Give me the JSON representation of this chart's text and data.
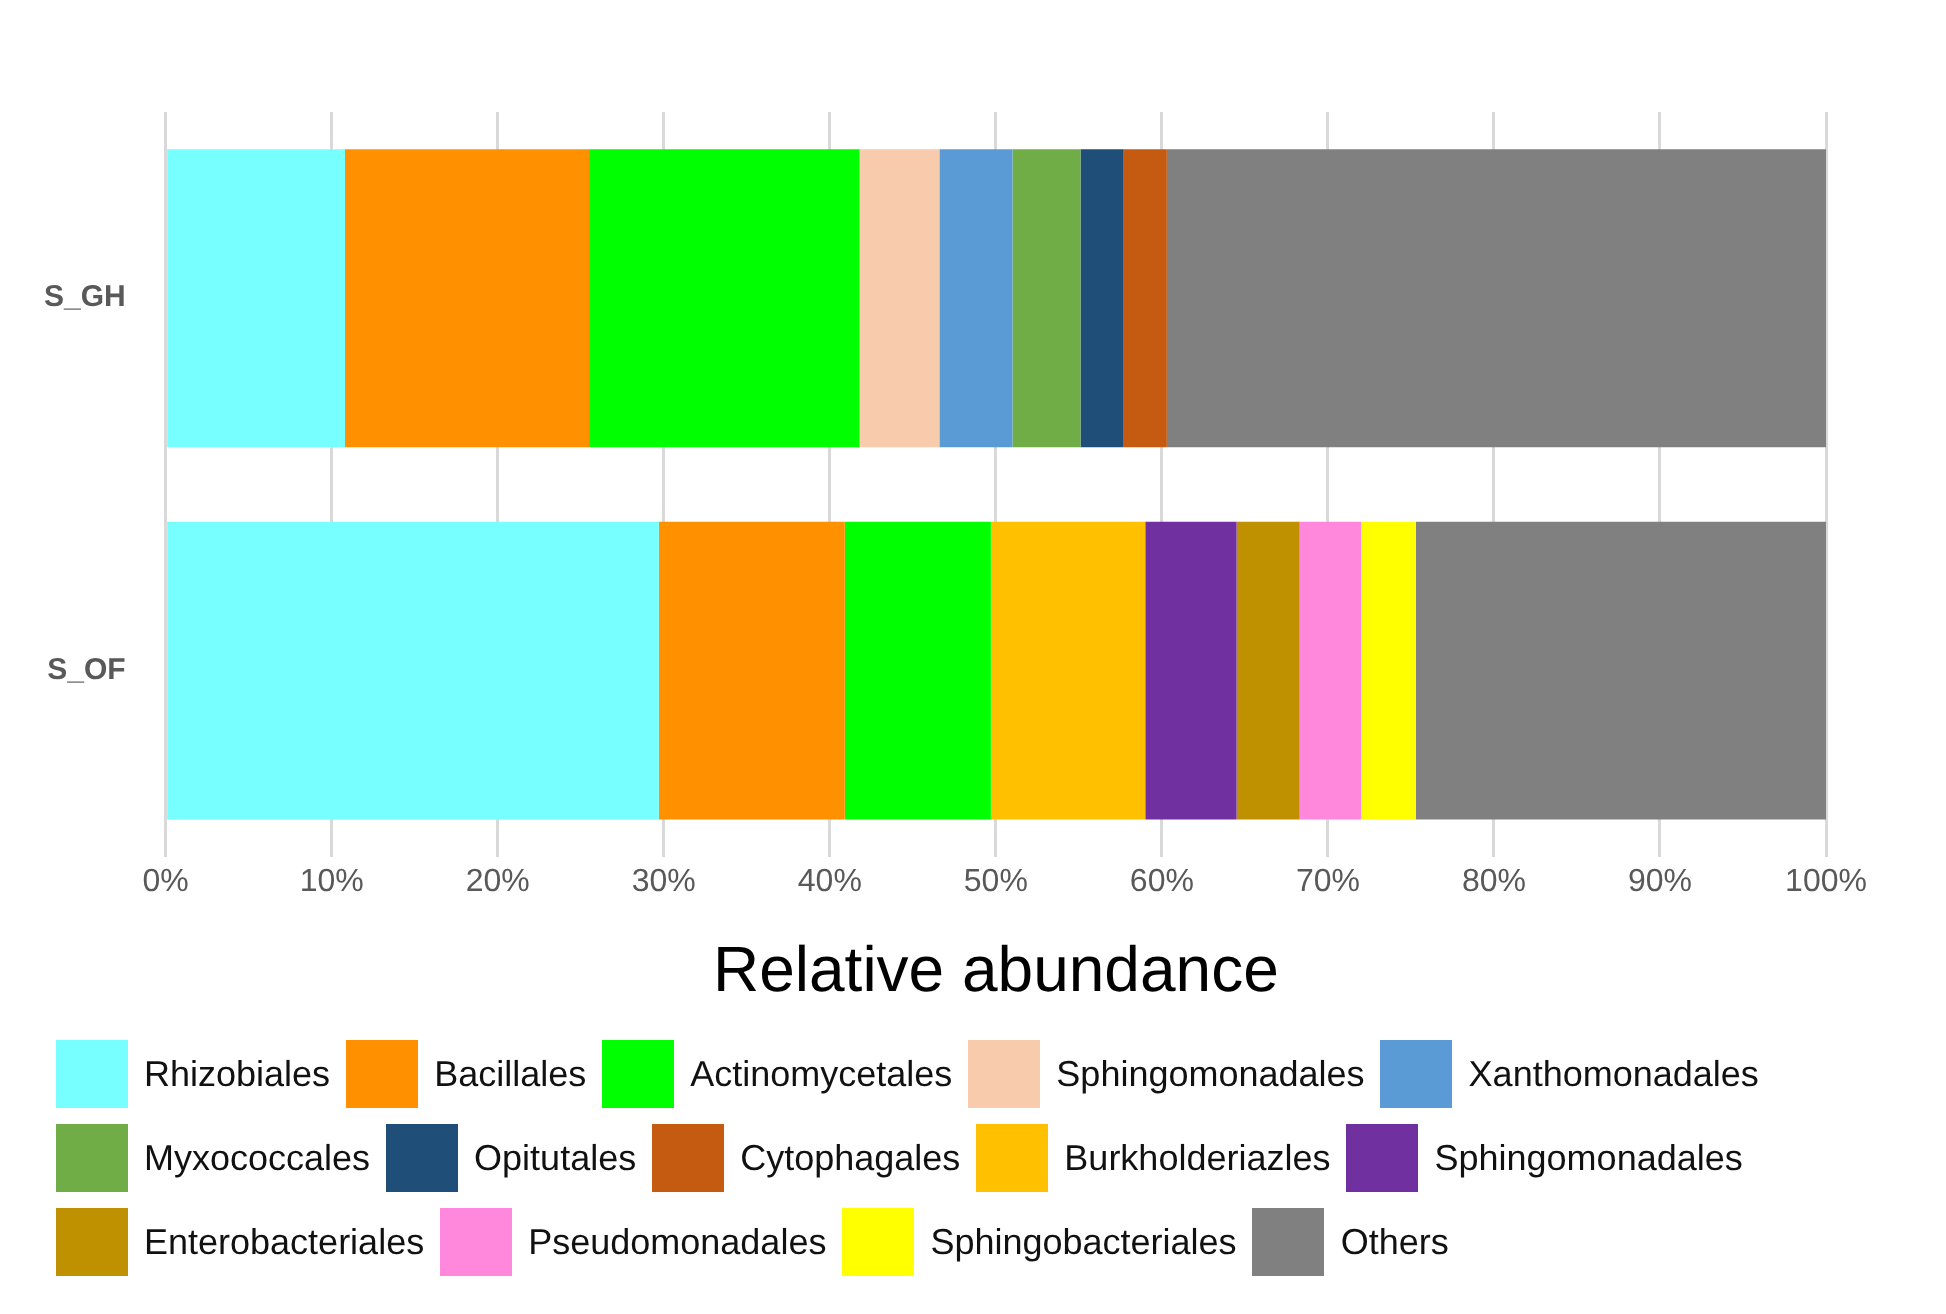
{
  "chart_data": {
    "type": "bar",
    "orientation": "horizontal",
    "stacked": true,
    "xlabel": "Relative abundance",
    "categories": [
      "S_GH",
      "S_OF"
    ],
    "series": [
      {
        "name": "Rhizobiales",
        "color": "#77ffff",
        "values": [
          10.8,
          29.7
        ]
      },
      {
        "name": "Bacillales",
        "color": "#ff9100",
        "values": [
          14.7,
          11.2
        ]
      },
      {
        "name": "Actinomycetales",
        "color": "#00ff00",
        "values": [
          16.3,
          8.8
        ]
      },
      {
        "name": "Sphingomonadales",
        "color": "#f7cbac",
        "values": [
          4.8,
          null
        ]
      },
      {
        "name": "Xanthomonadales",
        "color": "#5b9bd5",
        "values": [
          4.4,
          null
        ]
      },
      {
        "name": "Myxococcales",
        "color": "#70ad47",
        "values": [
          4.1,
          null
        ]
      },
      {
        "name": "Opitutales",
        "color": "#1f4e79",
        "values": [
          2.6,
          null
        ]
      },
      {
        "name": "Cytophagales",
        "color": "#c55a11",
        "values": [
          2.6,
          null
        ]
      },
      {
        "name": "Burkholderiazles",
        "color": "#ffc000",
        "values": [
          null,
          9.3
        ]
      },
      {
        "name": "Sphingomonadales",
        "color": "#7030a0",
        "values": [
          null,
          5.5
        ]
      },
      {
        "name": "Enterobacteriales",
        "color": "#bf9000",
        "values": [
          null,
          3.8
        ]
      },
      {
        "name": "Pseudomonadales",
        "color": "#ff88dd",
        "values": [
          null,
          3.7
        ]
      },
      {
        "name": "Sphingobacteriales",
        "color": "#ffff00",
        "values": [
          null,
          3.3
        ]
      },
      {
        "name": "Others",
        "color": "#808080",
        "values": [
          39.7,
          24.7
        ]
      }
    ],
    "xlim": [
      0,
      100
    ],
    "xticks": [
      {
        "value": 0,
        "label": "0%"
      },
      {
        "value": 10,
        "label": "10%"
      },
      {
        "value": 20,
        "label": "20%"
      },
      {
        "value": 30,
        "label": "30%"
      },
      {
        "value": 40,
        "label": "40%"
      },
      {
        "value": 50,
        "label": "50%"
      },
      {
        "value": 60,
        "label": "60%"
      },
      {
        "value": 70,
        "label": "70%"
      },
      {
        "value": 80,
        "label": "80%"
      },
      {
        "value": 90,
        "label": "90%"
      },
      {
        "value": 100,
        "label": "100%"
      }
    ],
    "grid": "x",
    "legend": "bottom"
  }
}
